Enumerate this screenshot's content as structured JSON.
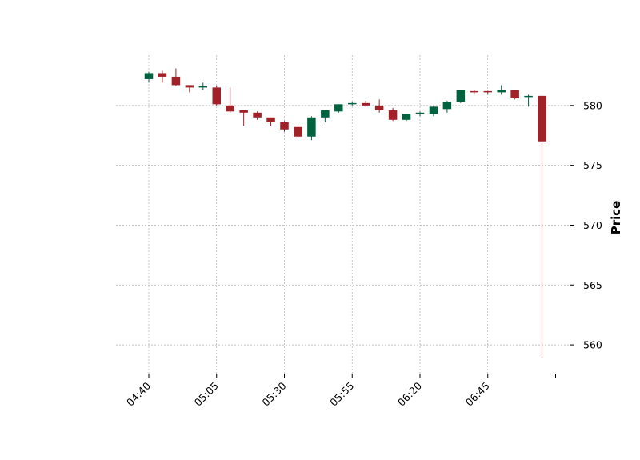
{
  "chart_data": {
    "type": "candlestick",
    "title": "",
    "xlabel": "",
    "ylabel": "Price",
    "ylim": [
      557.6,
      584.2
    ],
    "y_ticks": [
      560,
      565,
      570,
      575,
      580
    ],
    "x_tick_labels": [
      "04:40",
      "05:05",
      "05:30",
      "05:55",
      "06:20",
      "06:45",
      ""
    ],
    "y_axis_side": "right",
    "grid": true,
    "colors": {
      "up": "#006340",
      "down": "#a02128",
      "grid": "#b0b0b0"
    },
    "candles": [
      {
        "time": "04:40",
        "open": 582.2,
        "high": 582.8,
        "low": 581.9,
        "close": 582.7
      },
      {
        "time": "04:45",
        "open": 582.7,
        "high": 582.9,
        "low": 581.9,
        "close": 582.4
      },
      {
        "time": "04:50",
        "open": 582.4,
        "high": 583.1,
        "low": 581.6,
        "close": 581.7
      },
      {
        "time": "04:55",
        "open": 581.7,
        "high": 581.7,
        "low": 581.1,
        "close": 581.5
      },
      {
        "time": "05:00",
        "open": 581.5,
        "high": 581.9,
        "low": 581.3,
        "close": 581.6
      },
      {
        "time": "05:05",
        "open": 581.5,
        "high": 581.6,
        "low": 580.0,
        "close": 580.1
      },
      {
        "time": "05:10",
        "open": 580.0,
        "high": 581.5,
        "low": 579.4,
        "close": 579.5
      },
      {
        "time": "05:15",
        "open": 579.6,
        "high": 579.6,
        "low": 578.3,
        "close": 579.4
      },
      {
        "time": "05:20",
        "open": 579.4,
        "high": 579.5,
        "low": 578.8,
        "close": 579.0
      },
      {
        "time": "05:25",
        "open": 579.0,
        "high": 579.0,
        "low": 578.3,
        "close": 578.6
      },
      {
        "time": "05:30",
        "open": 578.6,
        "high": 578.7,
        "low": 577.8,
        "close": 578.0
      },
      {
        "time": "05:35",
        "open": 578.2,
        "high": 578.3,
        "low": 577.3,
        "close": 577.4
      },
      {
        "time": "05:40",
        "open": 577.4,
        "high": 579.1,
        "low": 577.1,
        "close": 579.0
      },
      {
        "time": "05:45",
        "open": 579.0,
        "high": 579.6,
        "low": 578.6,
        "close": 579.6
      },
      {
        "time": "05:50",
        "open": 579.5,
        "high": 580.1,
        "low": 579.4,
        "close": 580.1
      },
      {
        "time": "05:55",
        "open": 580.1,
        "high": 580.3,
        "low": 580.0,
        "close": 580.2
      },
      {
        "time": "06:00",
        "open": 580.2,
        "high": 580.4,
        "low": 579.9,
        "close": 580.0
      },
      {
        "time": "06:05",
        "open": 580.0,
        "high": 580.5,
        "low": 579.4,
        "close": 579.6
      },
      {
        "time": "06:10",
        "open": 579.6,
        "high": 579.8,
        "low": 578.7,
        "close": 578.8
      },
      {
        "time": "06:15",
        "open": 578.8,
        "high": 579.3,
        "low": 578.7,
        "close": 579.3
      },
      {
        "time": "06:20",
        "open": 579.3,
        "high": 579.5,
        "low": 579.1,
        "close": 579.4
      },
      {
        "time": "06:25",
        "open": 579.3,
        "high": 580.0,
        "low": 579.1,
        "close": 579.9
      },
      {
        "time": "06:30",
        "open": 579.7,
        "high": 580.4,
        "low": 579.4,
        "close": 580.3
      },
      {
        "time": "06:35",
        "open": 580.3,
        "high": 581.3,
        "low": 580.2,
        "close": 581.3
      },
      {
        "time": "06:40",
        "open": 581.2,
        "high": 581.3,
        "low": 580.9,
        "close": 581.1
      },
      {
        "time": "06:45",
        "open": 581.2,
        "high": 581.2,
        "low": 580.9,
        "close": 581.1
      },
      {
        "time": "06:50",
        "open": 581.1,
        "high": 581.7,
        "low": 580.9,
        "close": 581.3
      },
      {
        "time": "06:55",
        "open": 581.3,
        "high": 581.3,
        "low": 580.5,
        "close": 580.6
      },
      {
        "time": "07:00",
        "open": 580.7,
        "high": 580.9,
        "low": 579.9,
        "close": 580.8
      },
      {
        "time": "07:05",
        "open": 580.8,
        "high": 580.8,
        "low": 558.9,
        "close": 577.0
      }
    ]
  }
}
